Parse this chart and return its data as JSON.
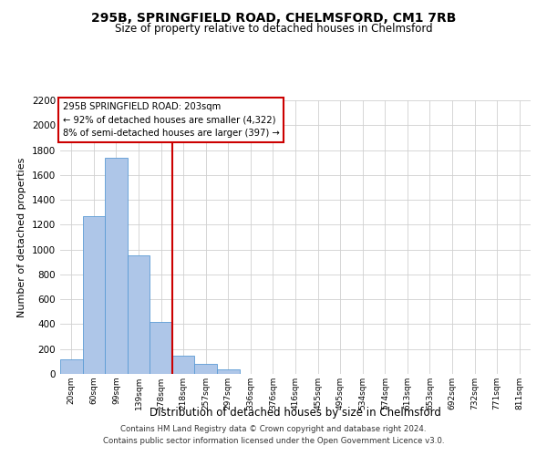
{
  "title": "295B, SPRINGFIELD ROAD, CHELMSFORD, CM1 7RB",
  "subtitle": "Size of property relative to detached houses in Chelmsford",
  "xlabel": "Distribution of detached houses by size in Chelmsford",
  "ylabel": "Number of detached properties",
  "bin_labels": [
    "20sqm",
    "60sqm",
    "99sqm",
    "139sqm",
    "178sqm",
    "218sqm",
    "257sqm",
    "297sqm",
    "336sqm",
    "376sqm",
    "416sqm",
    "455sqm",
    "495sqm",
    "534sqm",
    "574sqm",
    "613sqm",
    "653sqm",
    "692sqm",
    "732sqm",
    "771sqm",
    "811sqm"
  ],
  "bin_values": [
    120,
    1270,
    1740,
    950,
    420,
    150,
    80,
    35,
    0,
    0,
    0,
    0,
    0,
    0,
    0,
    0,
    0,
    0,
    0,
    0,
    0
  ],
  "ylim": [
    0,
    2200
  ],
  "yticks": [
    0,
    200,
    400,
    600,
    800,
    1000,
    1200,
    1400,
    1600,
    1800,
    2000,
    2200
  ],
  "bar_color": "#aec6e8",
  "bar_edge_color": "#5b9bd5",
  "vline_x_idx": 4.5,
  "vline_color": "#cc0000",
  "annotation_text": "295B SPRINGFIELD ROAD: 203sqm\n← 92% of detached houses are smaller (4,322)\n8% of semi-detached houses are larger (397) →",
  "annotation_box_color": "#ffffff",
  "annotation_box_edge": "#cc0000",
  "footer_line1": "Contains HM Land Registry data © Crown copyright and database right 2024.",
  "footer_line2": "Contains public sector information licensed under the Open Government Licence v3.0.",
  "background_color": "#ffffff",
  "grid_color": "#d0d0d0"
}
